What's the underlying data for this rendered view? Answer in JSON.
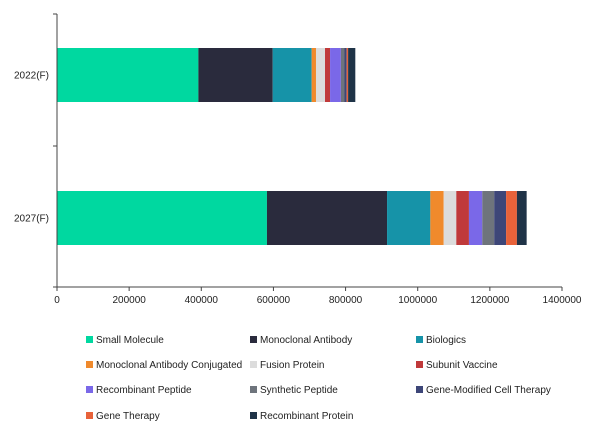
{
  "chart_data": {
    "type": "bar",
    "orientation": "horizontal",
    "stacked": true,
    "categories": [
      "2022(F)",
      "2027(F)"
    ],
    "xlim": [
      0,
      1400000
    ],
    "xticks": [
      "0",
      "200000",
      "400000",
      "600000",
      "800000",
      "1000000",
      "1200000",
      "1400000"
    ],
    "xtick_values": [
      0,
      200000,
      400000,
      600000,
      800000,
      1000000,
      1200000,
      1400000
    ],
    "grid": false,
    "legend_position": "bottom",
    "series": [
      {
        "name": "Small Molecule",
        "color": "#00d8a0",
        "values": [
          392000,
          582000
        ]
      },
      {
        "name": "Monoclonal Antibody",
        "color": "#2a2b3d",
        "values": [
          206000,
          333000
        ]
      },
      {
        "name": "Biologics",
        "color": "#1693a8",
        "values": [
          108000,
          120000
        ]
      },
      {
        "name": "Monoclonal Antibody Conjugated",
        "color": "#f08a2c",
        "values": [
          12000,
          37000
        ]
      },
      {
        "name": "Fusion Protein",
        "color": "#dcdcdc",
        "values": [
          25000,
          35000
        ]
      },
      {
        "name": "Subunit Vaccine",
        "color": "#c0393a",
        "values": [
          14000,
          35000
        ]
      },
      {
        "name": "Recombinant Peptide",
        "color": "#7a68e8",
        "values": [
          30000,
          37000
        ]
      },
      {
        "name": "Synthetic Peptide",
        "color": "#6e747c",
        "values": [
          10000,
          33000
        ]
      },
      {
        "name": "Gene-Modified Cell Therapy",
        "color": "#3d4678",
        "values": [
          6000,
          33000
        ]
      },
      {
        "name": "Gene Therapy",
        "color": "#e8623a",
        "values": [
          4000,
          30000
        ]
      },
      {
        "name": "Recombinant Protein",
        "color": "#1f3347",
        "values": [
          20000,
          27000
        ]
      }
    ]
  }
}
